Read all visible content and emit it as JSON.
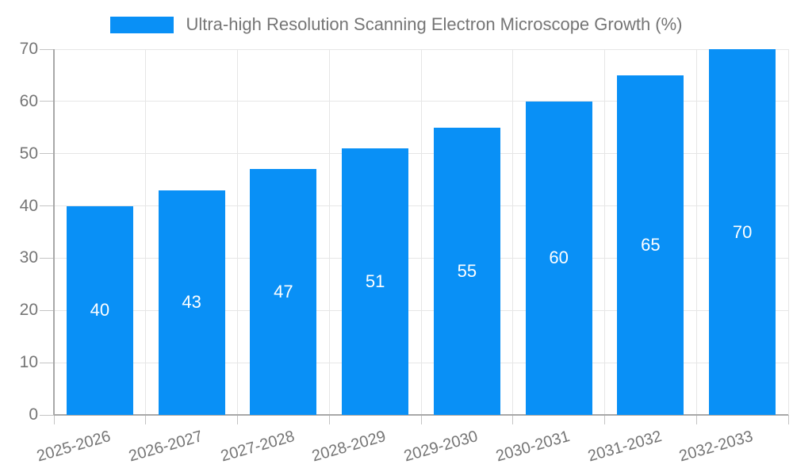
{
  "legend": {
    "label": "Ultra-high Resolution Scanning Electron Microscope Growth (%)"
  },
  "colors": {
    "bar": "#0990f6",
    "axis_line": "#a8a8a8",
    "tick": "#c4c4c4",
    "gridline": "#e6e6e6",
    "tick_text": "#757575",
    "title_text": "#757575",
    "bar_value_text": "#ffffff",
    "background": "#ffffff"
  },
  "chart_data": {
    "type": "bar",
    "title": "Ultra-high Resolution Scanning Electron Microscope Growth (%)",
    "categories": [
      "2025-2026",
      "2026-2027",
      "2027-2028",
      "2028-2029",
      "2029-2030",
      "2030-2031",
      "2031-2032",
      "2032-2033"
    ],
    "values": [
      40,
      43,
      47,
      51,
      55,
      60,
      65,
      70
    ],
    "bar_labels": [
      "40",
      "43",
      "47",
      "51",
      "55",
      "60",
      "65",
      "70"
    ],
    "xlabel": "",
    "ylabel": "",
    "ylim": [
      0,
      70
    ],
    "yticks": [
      0,
      10,
      20,
      30,
      40,
      50,
      60,
      70
    ],
    "grid": true,
    "legend_position": "top",
    "bar_label_position": "inside-middle",
    "x_label_rotation_deg": -16
  }
}
